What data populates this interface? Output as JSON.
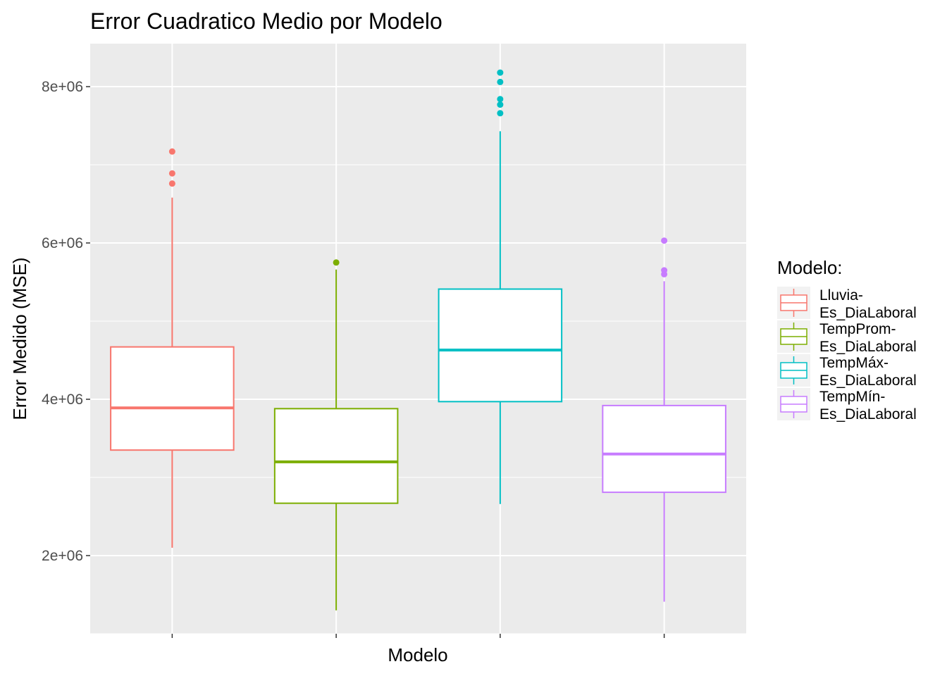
{
  "chart_data": {
    "type": "boxplot",
    "title": "Error Cuadratico Medio por Modelo",
    "xlabel": "Modelo",
    "ylabel": "Error Medido (MSE)",
    "ylim": [
      1000000,
      8550000
    ],
    "yticks": [
      2000000,
      4000000,
      6000000,
      8000000
    ],
    "ytick_labels": [
      "2e+06",
      "4e+06",
      "6e+06",
      "8e+06"
    ],
    "grid": true,
    "legend": {
      "title": "Modelo:",
      "position": "right"
    },
    "series": [
      {
        "name": "Lluvia-\nEs_DiaLaboral",
        "color": "#F8766D",
        "whisker_low": 2100000,
        "q1": 3350000,
        "median": 3890000,
        "q3": 4670000,
        "whisker_high": 6580000,
        "outliers": [
          6760000,
          6890000,
          7170000
        ]
      },
      {
        "name": "TempProm-\nEs_DiaLaboral",
        "color": "#7CAE00",
        "whisker_low": 1300000,
        "q1": 2670000,
        "median": 3200000,
        "q3": 3880000,
        "whisker_high": 5660000,
        "outliers": [
          5750000
        ]
      },
      {
        "name": "TempMáx-\nEs_DiaLaboral",
        "color": "#00BFC4",
        "whisker_low": 2660000,
        "q1": 3970000,
        "median": 4630000,
        "q3": 5410000,
        "whisker_high": 7430000,
        "outliers": [
          7660000,
          7770000,
          7840000,
          8060000,
          8180000
        ]
      },
      {
        "name": "TempMín-\nEs_DiaLaboral",
        "color": "#C77CFF",
        "whisker_low": 1410000,
        "q1": 2810000,
        "median": 3300000,
        "q3": 3920000,
        "whisker_high": 5510000,
        "outliers": [
          5600000,
          5650000,
          6030000
        ]
      }
    ]
  }
}
